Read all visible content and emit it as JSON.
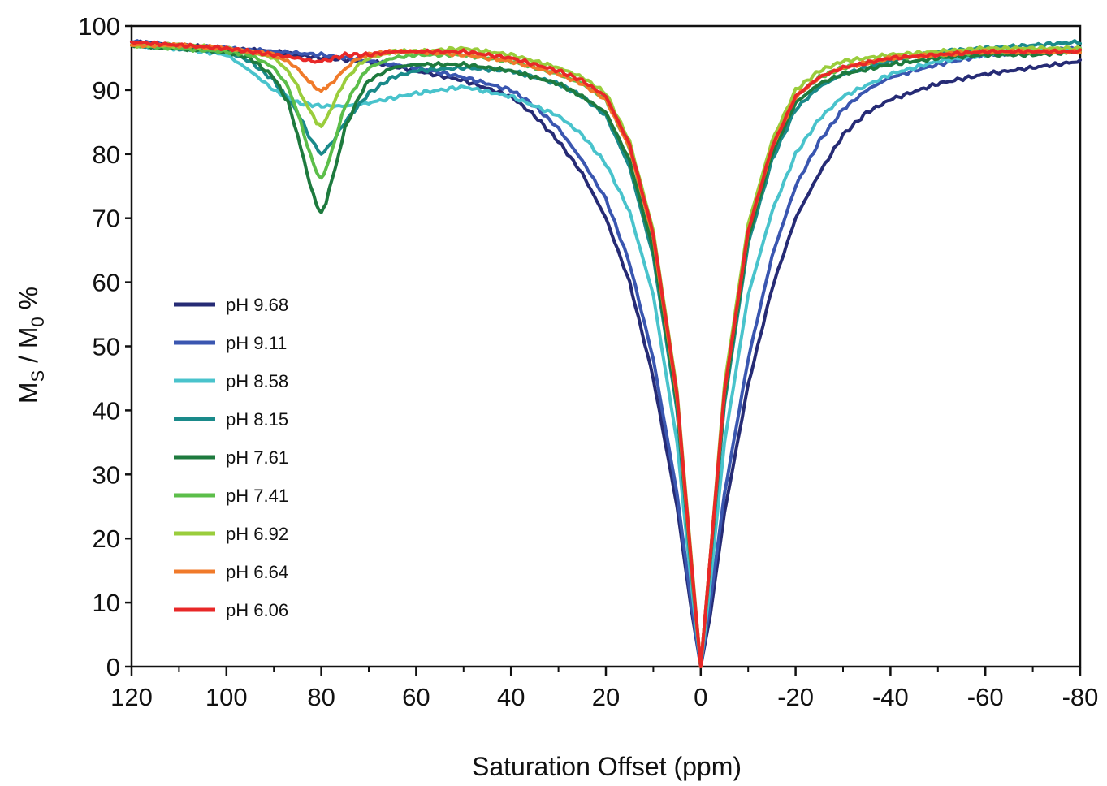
{
  "chart_data": {
    "type": "line",
    "xlabel": "Saturation Offset (ppm)",
    "ylabel_main": "M",
    "ylabel_sub_s": "S",
    "ylabel_sep": " / M",
    "ylabel_sub_0": "0",
    "ylabel_tail": " %",
    "xlim": [
      120,
      -80
    ],
    "ylim": [
      0,
      100
    ],
    "x_reversed": true,
    "x_ticks": [
      120,
      100,
      80,
      60,
      40,
      20,
      0,
      -20,
      -40,
      -60,
      -80
    ],
    "x_tick_labels": [
      "120",
      "100",
      "80",
      "60",
      "40",
      "20",
      "0",
      "-20",
      "-40",
      "-60",
      "-80"
    ],
    "y_ticks": [
      0,
      10,
      20,
      30,
      40,
      50,
      60,
      70,
      80,
      90,
      100
    ],
    "y_tick_labels": [
      "0",
      "10",
      "20",
      "30",
      "40",
      "50",
      "60",
      "70",
      "80",
      "90",
      "100"
    ],
    "grid": false,
    "legend_position": "left-center",
    "series": [
      {
        "name": "pH 9.68",
        "color": "#262b75",
        "x": [
          120,
          100,
          90,
          80,
          70,
          60,
          50,
          40,
          35,
          30,
          25,
          20,
          15,
          10,
          5,
          2,
          0,
          -2,
          -5,
          -10,
          -15,
          -20,
          -25,
          -30,
          -35,
          -40,
          -50,
          -60,
          -70,
          -80
        ],
        "y": [
          97.5,
          96.5,
          96,
          95,
          94.5,
          93,
          91.5,
          89,
          86,
          82,
          77,
          70,
          60,
          45,
          25,
          9,
          0,
          8,
          24,
          44,
          59,
          70,
          77,
          83,
          86.5,
          88.5,
          91,
          92.5,
          93.5,
          94.5
        ]
      },
      {
        "name": "pH 9.11",
        "color": "#3a56b0",
        "x": [
          120,
          100,
          90,
          80,
          70,
          60,
          50,
          40,
          35,
          30,
          25,
          20,
          15,
          10,
          5,
          2,
          0,
          -2,
          -5,
          -10,
          -15,
          -20,
          -25,
          -30,
          -35,
          -40,
          -50,
          -60,
          -70,
          -80
        ],
        "y": [
          97.5,
          96.5,
          96,
          95.5,
          94.5,
          93.5,
          92,
          90,
          87.5,
          84,
          79,
          73,
          63,
          48,
          27,
          10,
          0,
          10,
          27,
          48,
          64,
          75,
          82,
          87,
          90,
          92,
          94,
          95.5,
          96,
          96.5
        ]
      },
      {
        "name": "pH 8.58",
        "color": "#49c3cc",
        "x": [
          120,
          110,
          100,
          95,
          90,
          85,
          80,
          75,
          70,
          60,
          50,
          40,
          30,
          25,
          20,
          15,
          10,
          5,
          2,
          0,
          -2,
          -5,
          -10,
          -15,
          -20,
          -25,
          -30,
          -40,
          -50,
          -60,
          -70,
          -80
        ],
        "y": [
          97,
          96.5,
          95.5,
          93,
          90,
          88,
          87.5,
          87.5,
          88,
          89.5,
          90.5,
          89,
          86,
          83,
          78.5,
          71,
          58,
          35,
          13,
          0,
          13,
          35,
          58,
          71,
          80,
          85.5,
          89,
          92.5,
          94.5,
          95.5,
          96,
          96.5
        ]
      },
      {
        "name": "pH 8.15",
        "color": "#1a8a8a",
        "x": [
          120,
          110,
          100,
          95,
          90,
          85,
          82,
          80,
          78,
          75,
          70,
          65,
          60,
          50,
          40,
          30,
          25,
          20,
          15,
          10,
          5,
          2,
          0,
          -2,
          -5,
          -10,
          -15,
          -20,
          -25,
          -30,
          -40,
          -50,
          -60,
          -70,
          -80
        ],
        "y": [
          97,
          96.5,
          96,
          94.5,
          91.5,
          86.5,
          82,
          80,
          81.5,
          85,
          89.5,
          92,
          93,
          93.5,
          93,
          91,
          89,
          86,
          78,
          64,
          40,
          15,
          0,
          16,
          41,
          66,
          79,
          87,
          90.5,
          92.5,
          94.5,
          96,
          96.5,
          97,
          97.5
        ]
      },
      {
        "name": "pH 7.61",
        "color": "#1e7a3e",
        "x": [
          120,
          110,
          100,
          95,
          90,
          87,
          85,
          83,
          81,
          80,
          79,
          77,
          75,
          72,
          70,
          65,
          60,
          50,
          40,
          30,
          25,
          20,
          15,
          10,
          5,
          2,
          0,
          -2,
          -5,
          -10,
          -15,
          -20,
          -25,
          -30,
          -40,
          -50,
          -60,
          -70,
          -80
        ],
        "y": [
          97,
          96.5,
          96,
          95,
          92,
          88,
          83,
          77,
          72,
          71,
          72.5,
          78,
          84,
          89,
          91.5,
          93.5,
          94,
          94,
          93,
          91,
          89,
          86.5,
          79,
          65,
          41,
          16,
          0,
          17,
          42,
          67,
          80,
          88,
          91,
          92.5,
          94,
          95,
          95.5,
          95.5,
          96
        ]
      },
      {
        "name": "pH 7.41",
        "color": "#5cbe4a",
        "x": [
          120,
          110,
          100,
          95,
          90,
          87,
          85,
          83,
          81,
          80,
          79,
          77,
          75,
          72,
          70,
          65,
          60,
          50,
          40,
          30,
          25,
          20,
          15,
          10,
          5,
          2,
          0,
          -2,
          -5,
          -10,
          -15,
          -20,
          -25,
          -30,
          -40,
          -50,
          -60,
          -70,
          -80
        ],
        "y": [
          97,
          96.5,
          96,
          95.5,
          93.5,
          90.5,
          86.5,
          81.5,
          77,
          76,
          77.5,
          82.5,
          87.5,
          91.5,
          93.5,
          95,
          95.5,
          95.5,
          94.5,
          92.5,
          91,
          88.5,
          81,
          67,
          42,
          16,
          0,
          17,
          43,
          68,
          81,
          89,
          92,
          93.5,
          95,
          95.5,
          96,
          96,
          96
        ]
      },
      {
        "name": "pH 6.92",
        "color": "#9acd3c",
        "x": [
          120,
          110,
          100,
          95,
          90,
          87,
          85,
          83,
          81,
          80,
          79,
          77,
          75,
          72,
          70,
          65,
          60,
          50,
          40,
          30,
          25,
          20,
          15,
          10,
          5,
          2,
          0,
          -2,
          -5,
          -10,
          -15,
          -20,
          -25,
          -30,
          -40,
          -50,
          -60,
          -70,
          -80
        ],
        "y": [
          97,
          97,
          96.5,
          96,
          95,
          93,
          90.5,
          87.5,
          85,
          84.5,
          85.5,
          88.5,
          91.5,
          94,
          95,
          96,
          96,
          96.5,
          95.5,
          93.5,
          92,
          89.5,
          82,
          68,
          43,
          17,
          0,
          17,
          44,
          69,
          82,
          90,
          93,
          94.5,
          95.5,
          96,
          96.5,
          96.5,
          96.5
        ]
      },
      {
        "name": "pH 6.64",
        "color": "#f07a2a",
        "x": [
          120,
          110,
          100,
          95,
          90,
          86,
          84,
          82,
          81,
          80,
          79,
          78,
          76,
          74,
          72,
          70,
          65,
          60,
          50,
          40,
          30,
          25,
          20,
          15,
          10,
          5,
          2,
          0,
          -2,
          -5,
          -10,
          -15,
          -20,
          -25,
          -30,
          -40,
          -50,
          -60,
          -70,
          -80
        ],
        "y": [
          97,
          97,
          96.5,
          96,
          95.5,
          94,
          92.5,
          91,
          90,
          89.8,
          90.2,
          91,
          92.5,
          94,
          95,
          95.5,
          96,
          96,
          95.5,
          94.5,
          92.5,
          91,
          88.5,
          81,
          67,
          42,
          16,
          0,
          17,
          43,
          68,
          81,
          89,
          92,
          93.5,
          95,
          95.5,
          96,
          96,
          96
        ]
      },
      {
        "name": "pH 6.06",
        "color": "#e82828",
        "x": [
          120,
          110,
          100,
          95,
          90,
          85,
          82,
          80,
          78,
          75,
          70,
          65,
          60,
          50,
          40,
          30,
          25,
          20,
          15,
          10,
          5,
          2,
          0,
          -2,
          -5,
          -10,
          -15,
          -20,
          -25,
          -30,
          -40,
          -50,
          -60,
          -70,
          -80
        ],
        "y": [
          97.5,
          97,
          96.5,
          96,
          95.5,
          95,
          94.5,
          94.5,
          94.8,
          95.5,
          95.5,
          96,
          96,
          96,
          95,
          93,
          91.5,
          89,
          81.5,
          67.5,
          42.5,
          16.5,
          0,
          17,
          43,
          68,
          81,
          89,
          92,
          93.5,
          95,
          95.5,
          96,
          96,
          96
        ]
      }
    ]
  }
}
